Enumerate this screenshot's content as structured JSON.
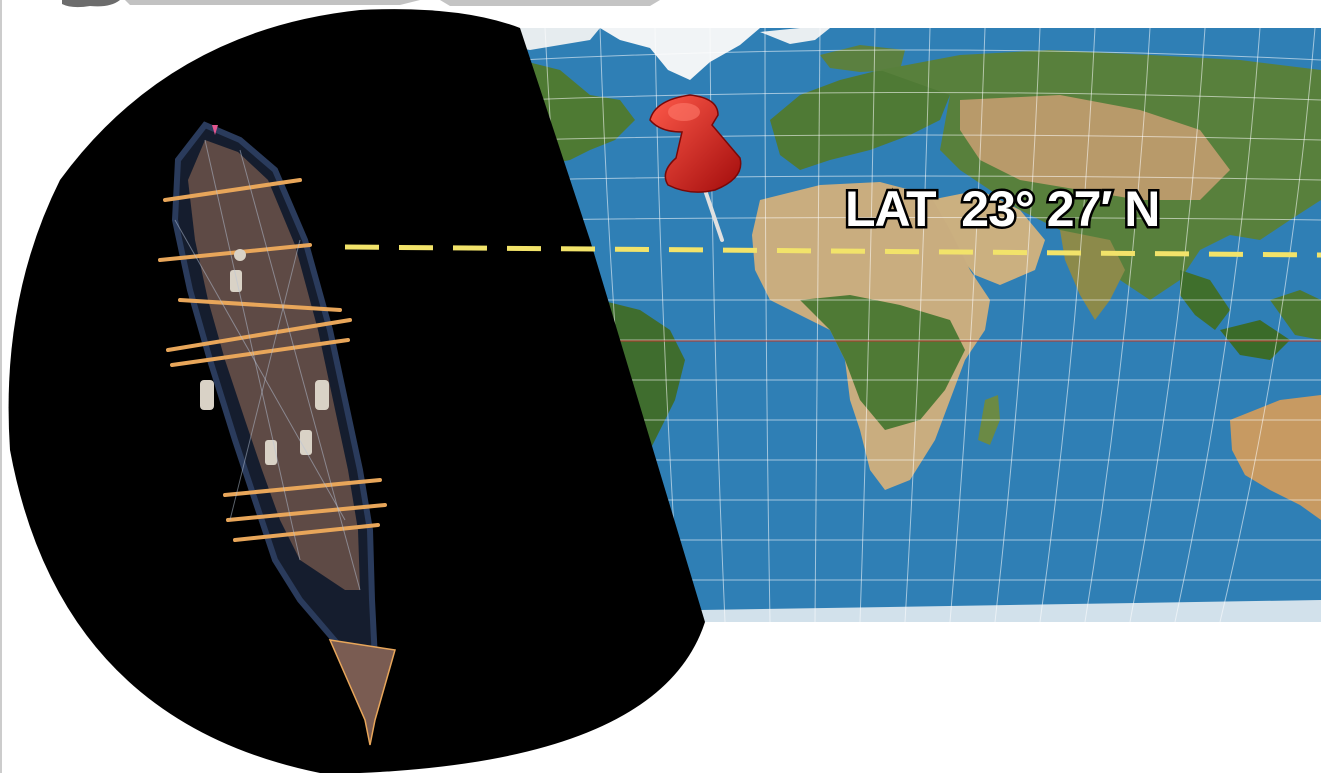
{
  "map": {
    "latitude_label": "LAT  23° 27′ N"
  },
  "colors": {
    "ocean": "#2f7fb5",
    "land_desert": "#c9ad7f",
    "land_green": "#4e7a33",
    "ice": "#f1f4f6",
    "latitude_line": "#f2e36a",
    "pin_red": "#d41e1e",
    "ship_disc": "#000000",
    "ship_wood": "#5e4a45",
    "ship_sails": "#e8a65a"
  },
  "icons": {
    "marker": "push-pin-icon"
  }
}
